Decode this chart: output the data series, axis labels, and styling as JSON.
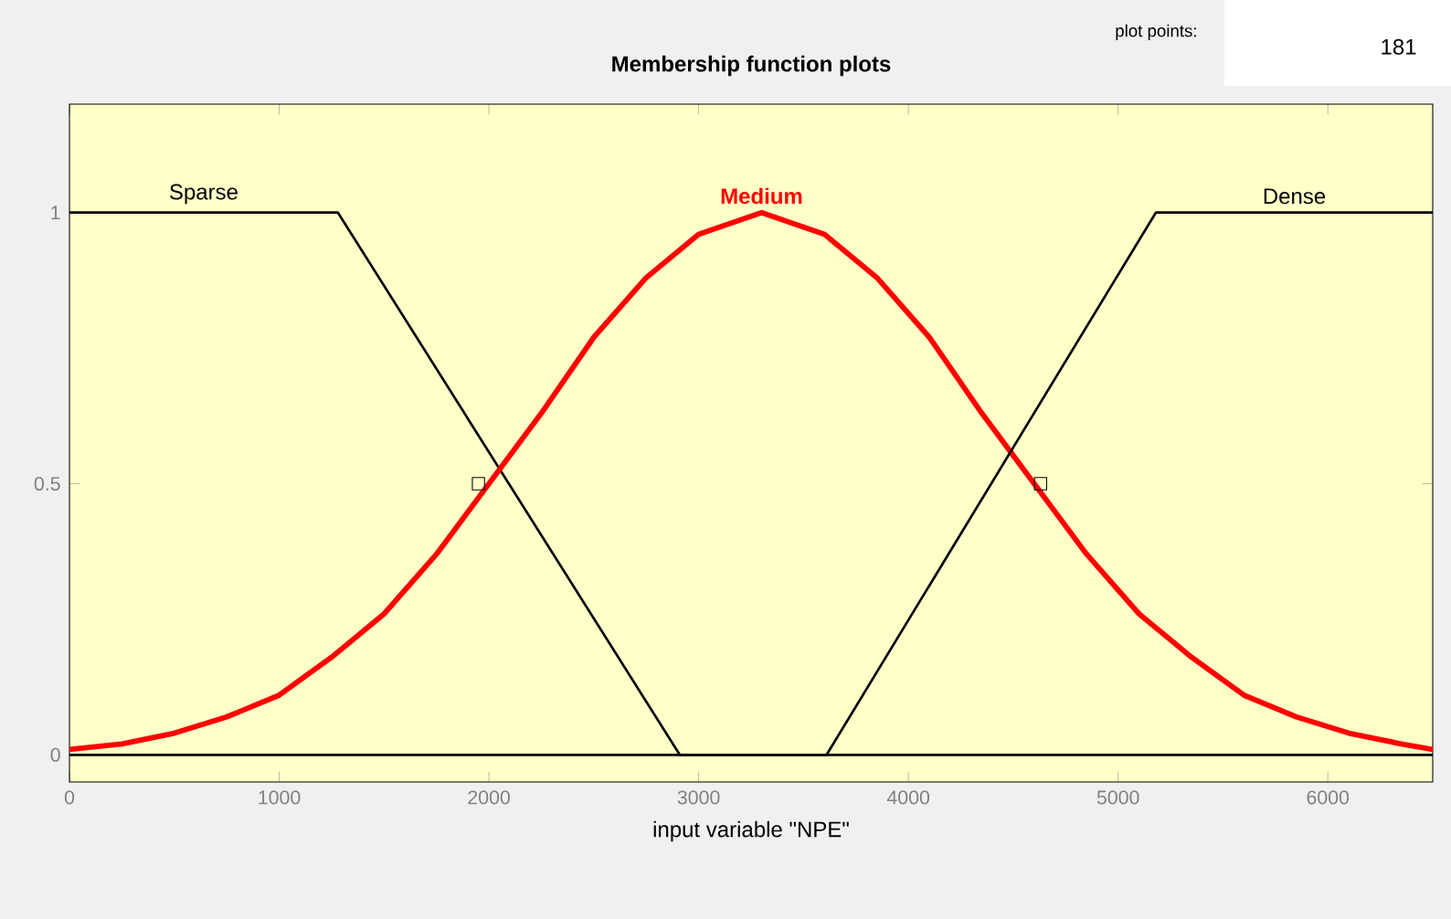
{
  "chart_data": {
    "type": "line",
    "title": "Membership function plots",
    "xlabel": "input variable \"NPE\"",
    "annotations": [
      "plot points:",
      "181"
    ],
    "xlim": [
      0,
      6500
    ],
    "ylim": [
      -0.05,
      1.2
    ],
    "xticks": [
      0,
      1000,
      2000,
      3000,
      4000,
      5000,
      6000
    ],
    "yticks": [
      0,
      0.5,
      1
    ],
    "grid": false,
    "series": [
      {
        "name": "Sparse",
        "color": "#000000",
        "x": [
          0,
          1280,
          2910,
          6500
        ],
        "values": [
          1,
          1,
          0,
          0
        ]
      },
      {
        "name": "Medium",
        "color": "#ff0000",
        "x": [
          0,
          250,
          500,
          750,
          1000,
          1250,
          1500,
          1750,
          2000,
          2250,
          2500,
          2750,
          3000,
          3300,
          3600,
          3850,
          4100,
          4350,
          4600,
          4850,
          5100,
          5350,
          5600,
          5850,
          6100,
          6350,
          6500
        ],
        "values": [
          0.01,
          0.02,
          0.04,
          0.07,
          0.11,
          0.18,
          0.26,
          0.37,
          0.5,
          0.63,
          0.77,
          0.88,
          0.96,
          1,
          0.96,
          0.88,
          0.77,
          0.63,
          0.5,
          0.37,
          0.26,
          0.18,
          0.11,
          0.07,
          0.04,
          0.02,
          0.01
        ]
      },
      {
        "name": "Dense",
        "color": "#000000",
        "x": [
          0,
          3610,
          5180,
          6500
        ],
        "values": [
          0,
          0,
          1,
          1
        ]
      },
      {
        "type": "scatter",
        "marker": "square",
        "color": "#000000",
        "x": [
          1950,
          4630
        ],
        "values": [
          0.5,
          0.5
        ]
      }
    ]
  }
}
